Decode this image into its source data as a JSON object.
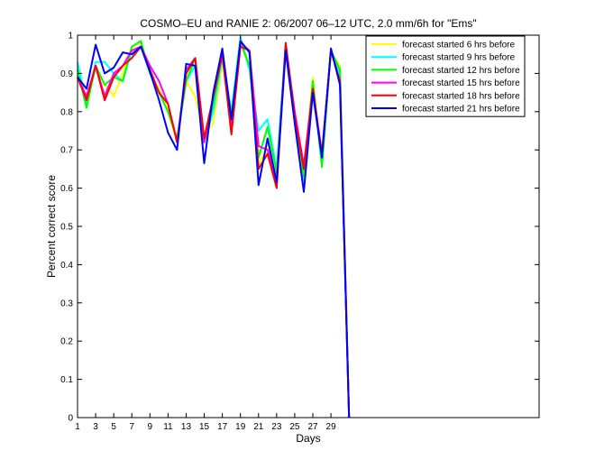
{
  "chart_data": {
    "type": "line",
    "title": "COSMO–EU and RANIE 2: 06/2007 06–12 UTC, 2.0 mm/6h for \"Ems\"",
    "xlabel": "Days",
    "ylabel": "Percent correct score",
    "xlim": [
      1,
      52
    ],
    "ylim": [
      0,
      1
    ],
    "xticks": [
      "1",
      "3",
      "5",
      "7",
      "9",
      "11",
      "13",
      "15",
      "17",
      "19",
      "21",
      "23",
      "25",
      "27",
      "29"
    ],
    "yticks": [
      "0",
      "0.1",
      "0.2",
      "0.3",
      "0.4",
      "0.5",
      "0.6",
      "0.7",
      "0.8",
      "0.9",
      "1"
    ],
    "legend_position": "top-right",
    "x": [
      1,
      2,
      3,
      4,
      5,
      6,
      7,
      8,
      9,
      10,
      11,
      12,
      13,
      14,
      15,
      16,
      17,
      18,
      19,
      20,
      21,
      22,
      23,
      24,
      25,
      26,
      27,
      28,
      29,
      30,
      31
    ],
    "series": [
      {
        "name": "forecast started 6 hrs before",
        "color": "#ffff00",
        "values": [
          0.92,
          0.82,
          0.92,
          0.87,
          0.84,
          0.9,
          0.97,
          0.98,
          0.9,
          0.86,
          0.8,
          0.72,
          0.88,
          0.84,
          0.74,
          0.77,
          0.93,
          0.78,
          0.99,
          0.92,
          0.66,
          0.71,
          0.62,
          0.96,
          0.8,
          0.63,
          0.89,
          0.66,
          0.95,
          0.92,
          0.0
        ]
      },
      {
        "name": "forecast started 9 hrs before",
        "color": "#00ffff",
        "values": [
          0.93,
          0.82,
          0.93,
          0.93,
          0.9,
          0.88,
          0.96,
          0.97,
          0.9,
          0.85,
          0.8,
          0.73,
          0.88,
          0.92,
          0.72,
          0.8,
          0.94,
          0.8,
          0.995,
          0.91,
          0.75,
          0.78,
          0.65,
          0.98,
          0.8,
          0.62,
          0.85,
          0.68,
          0.96,
          0.9,
          0.0
        ]
      },
      {
        "name": "forecast started 12 hrs before",
        "color": "#00ff00",
        "values": [
          0.91,
          0.81,
          0.92,
          0.87,
          0.89,
          0.88,
          0.97,
          0.985,
          0.9,
          0.85,
          0.8,
          0.73,
          0.88,
          0.94,
          0.72,
          0.82,
          0.95,
          0.79,
          0.98,
          0.92,
          0.68,
          0.76,
          0.64,
          0.97,
          0.79,
          0.63,
          0.88,
          0.655,
          0.96,
          0.91,
          0.0
        ]
      },
      {
        "name": "forecast started 15 hrs before",
        "color": "#ff00ff",
        "values": [
          0.89,
          0.84,
          0.92,
          0.84,
          0.9,
          0.92,
          0.96,
          0.97,
          0.92,
          0.88,
          0.82,
          0.72,
          0.91,
          0.94,
          0.72,
          0.84,
          0.95,
          0.76,
          0.98,
          0.96,
          0.71,
          0.7,
          0.62,
          0.97,
          0.8,
          0.66,
          0.86,
          0.69,
          0.96,
          0.88,
          0.0
        ]
      },
      {
        "name": "forecast started 18 hrs before",
        "color": "#ff0000",
        "values": [
          0.89,
          0.83,
          0.92,
          0.83,
          0.89,
          0.92,
          0.94,
          0.97,
          0.91,
          0.85,
          0.82,
          0.72,
          0.9,
          0.94,
          0.73,
          0.84,
          0.95,
          0.74,
          0.97,
          0.96,
          0.65,
          0.69,
          0.6,
          0.98,
          0.79,
          0.65,
          0.86,
          0.69,
          0.96,
          0.88,
          0.0
        ]
      },
      {
        "name": "forecast started 21 hrs before",
        "color": "#0000ff",
        "values": [
          0.89,
          0.86,
          0.975,
          0.9,
          0.915,
          0.955,
          0.95,
          0.97,
          0.905,
          0.83,
          0.745,
          0.7,
          0.925,
          0.92,
          0.665,
          0.85,
          0.965,
          0.78,
          0.985,
          0.955,
          0.608,
          0.73,
          0.615,
          0.96,
          0.77,
          0.59,
          0.85,
          0.68,
          0.965,
          0.87,
          0.0
        ]
      }
    ]
  }
}
